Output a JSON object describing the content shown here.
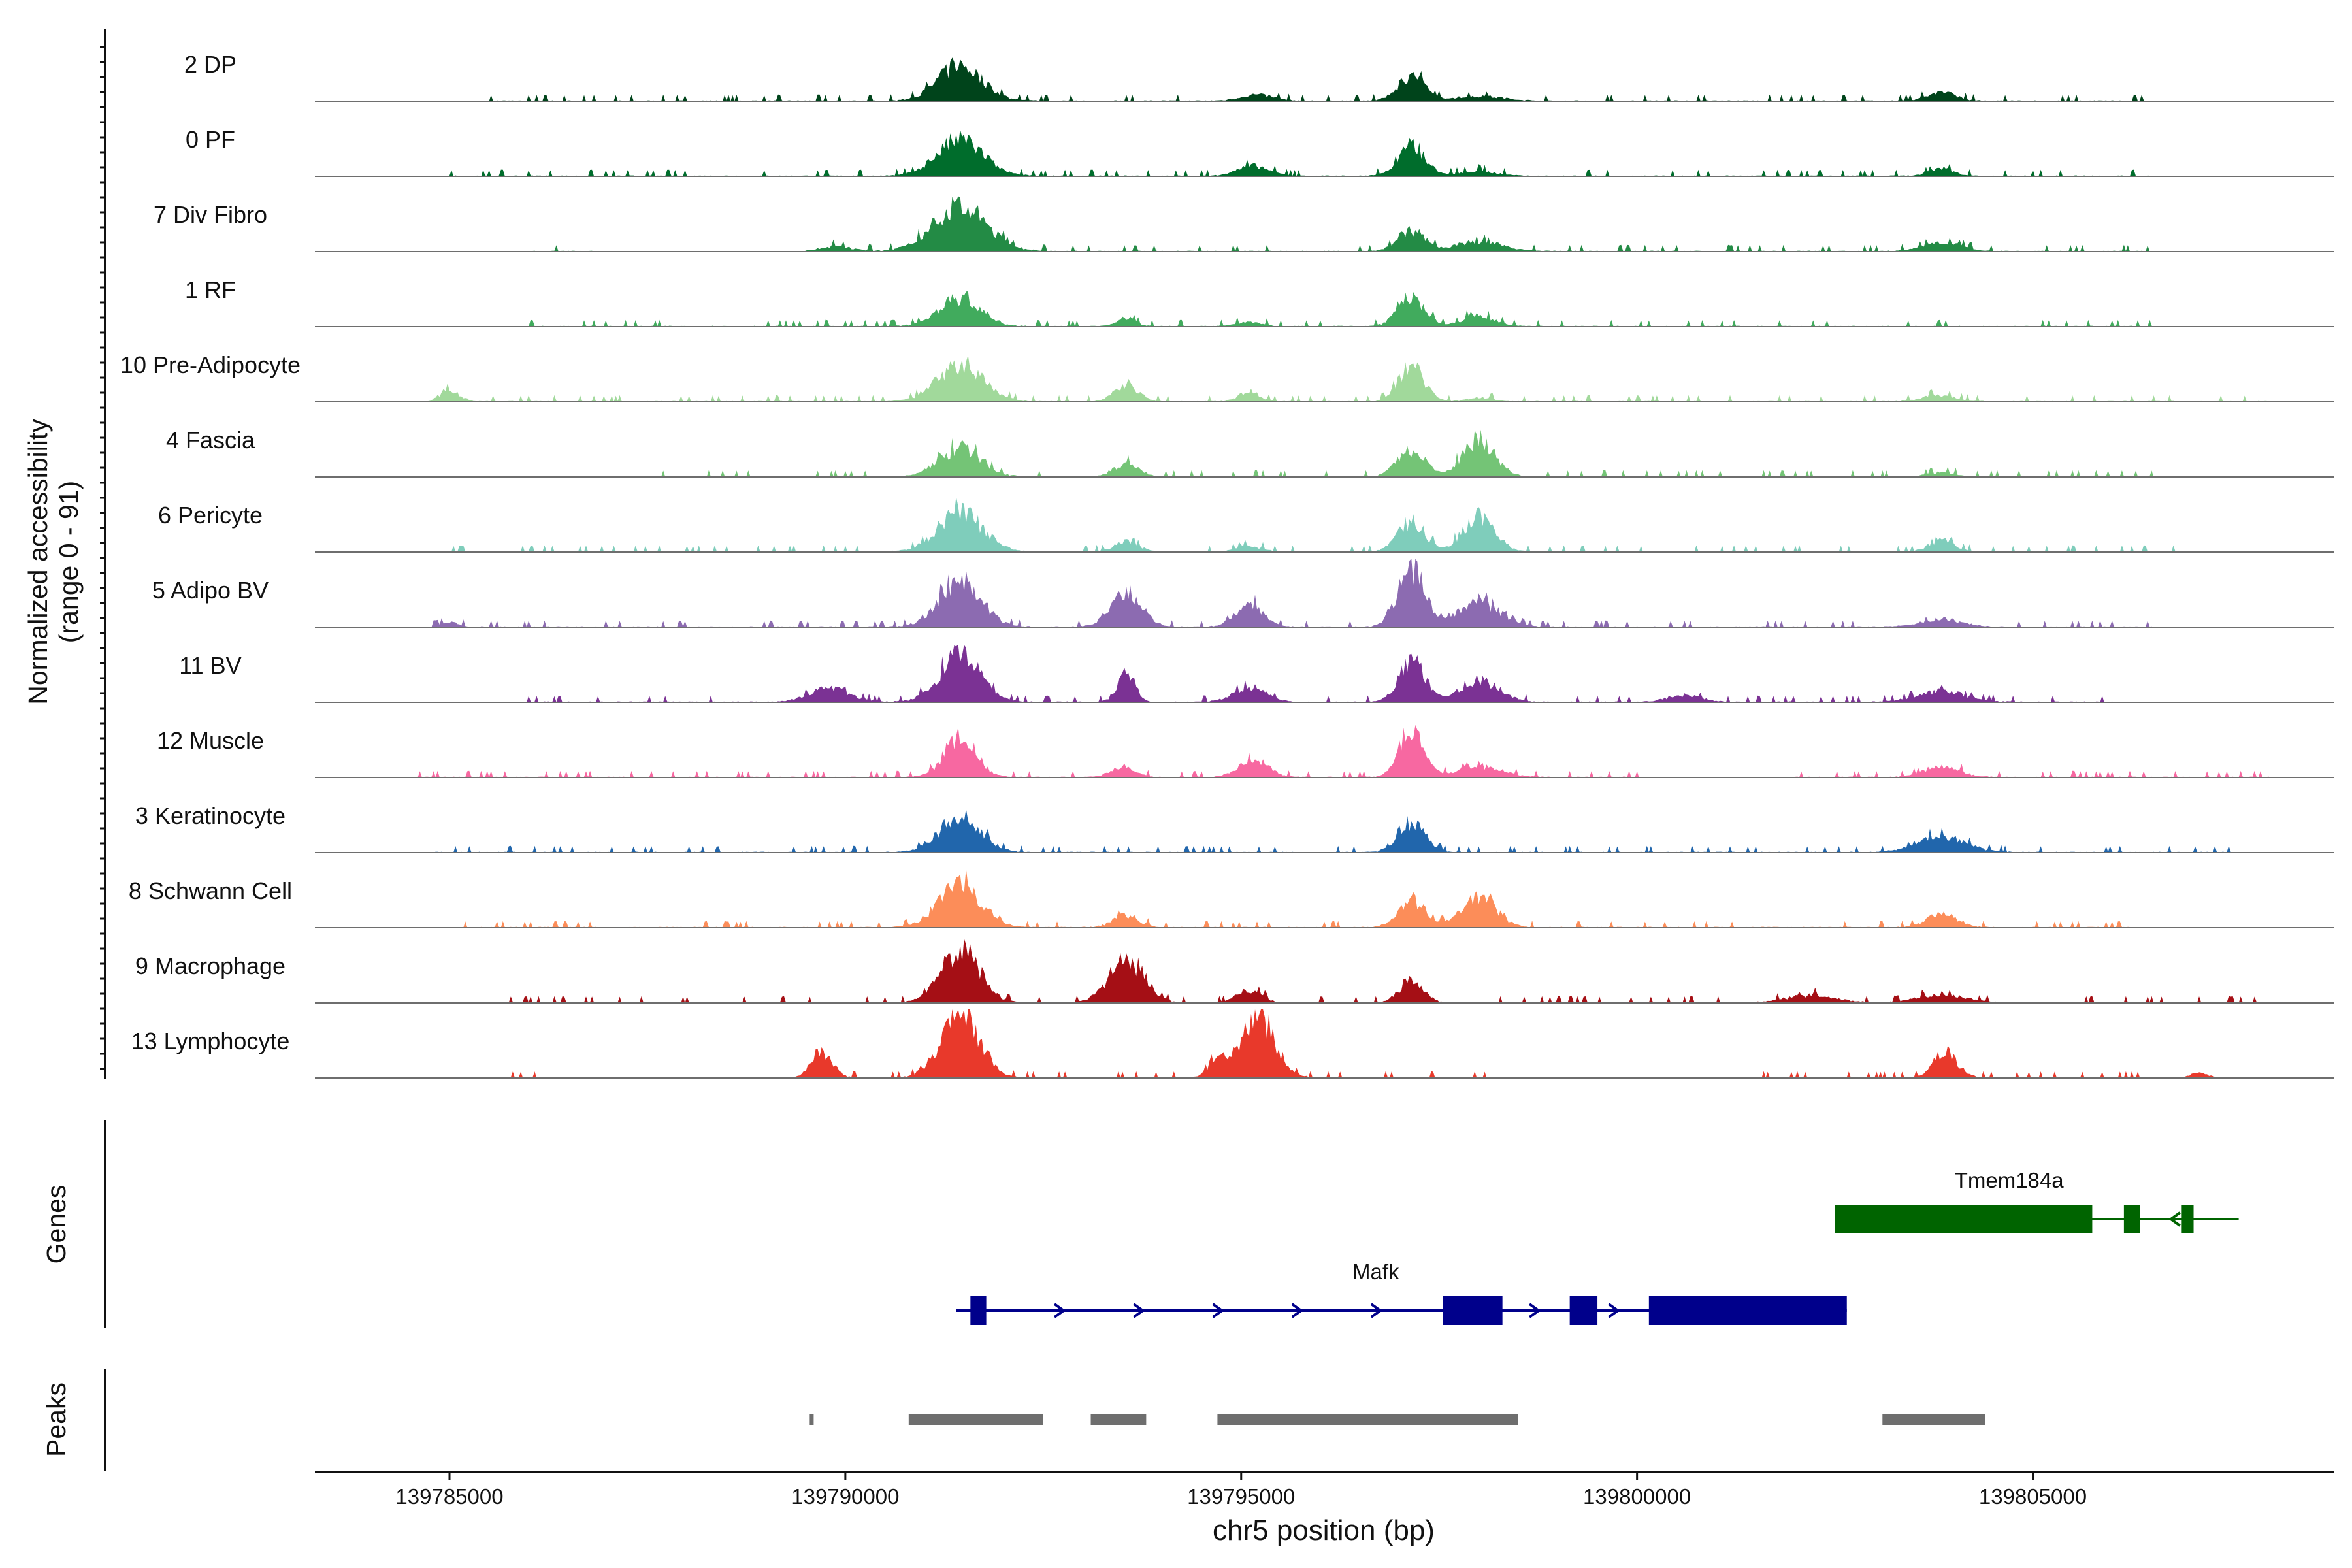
{
  "chart_data": {
    "type": "area",
    "title": "",
    "chromosome": "chr5",
    "xlabel": "chr5 position (bp)",
    "ylabel": "Normalized accessibility",
    "ylabel_range": "(range 0 - 91)",
    "y_range": [
      0,
      91
    ],
    "xlim": [
      139783300,
      139808800
    ],
    "x_ticks": [
      {
        "value": 139785000,
        "label": "139785000"
      },
      {
        "value": 139790000,
        "label": "139790000"
      },
      {
        "value": 139795000,
        "label": "139795000"
      },
      {
        "value": 139800000,
        "label": "139800000"
      },
      {
        "value": 139805000,
        "label": "139805000"
      }
    ],
    "tracks": [
      {
        "name": "2 DP",
        "color": "#00441b",
        "noise": [
          [
            139785500,
            139806500
          ]
        ],
        "peaks": [
          [
            139791450,
            46,
            280
          ],
          [
            139795200,
            8,
            200
          ],
          [
            139797150,
            32,
            170
          ],
          [
            139798000,
            6,
            300
          ],
          [
            139803850,
            12,
            170
          ]
        ]
      },
      {
        "name": "0 PF",
        "color": "#006d2c",
        "noise": [
          [
            139785000,
            139806500
          ]
        ],
        "peaks": [
          [
            139791450,
            48,
            290
          ],
          [
            139795150,
            13,
            200
          ],
          [
            139797150,
            42,
            170
          ],
          [
            139798000,
            6,
            250
          ],
          [
            139803850,
            10,
            150
          ]
        ]
      },
      {
        "name": "7 Div Fibro",
        "color": "#238b45",
        "noise": [
          [
            139786000,
            139786800
          ],
          [
            139789500,
            139806500
          ]
        ],
        "peaks": [
          [
            139791450,
            58,
            340
          ],
          [
            139789900,
            6,
            200
          ],
          [
            139797150,
            28,
            170
          ],
          [
            139798000,
            12,
            300
          ],
          [
            139803850,
            12,
            230
          ]
        ]
      },
      {
        "name": "1 RF",
        "color": "#41ab5d",
        "noise": [
          [
            139786000,
            139806500
          ]
        ],
        "peaks": [
          [
            139791450,
            38,
            260
          ],
          [
            139793550,
            11,
            110
          ],
          [
            139795100,
            6,
            150
          ],
          [
            139797150,
            36,
            170
          ],
          [
            139798000,
            14,
            200
          ]
        ]
      },
      {
        "name": "10 Pre-Adipocyte",
        "color": "#a1d99b",
        "noise": [
          [
            139784800,
            139808000
          ]
        ],
        "peaks": [
          [
            139785000,
            16,
            120
          ],
          [
            139791450,
            46,
            290
          ],
          [
            139793550,
            22,
            150
          ],
          [
            139795100,
            14,
            120
          ],
          [
            139797150,
            46,
            160
          ],
          [
            139798000,
            5,
            150
          ],
          [
            139803800,
            8,
            200
          ]
        ]
      },
      {
        "name": "4 Fascia",
        "color": "#74c476",
        "noise": [
          [
            139787000,
            139806500
          ]
        ],
        "peaks": [
          [
            139791450,
            38,
            260
          ],
          [
            139793550,
            18,
            150
          ],
          [
            139797150,
            36,
            170
          ],
          [
            139798000,
            50,
            200
          ],
          [
            139803850,
            6,
            150
          ]
        ]
      },
      {
        "name": "6 Pericyte",
        "color": "#7fcdbb",
        "noise": [
          [
            139785000,
            139807000
          ]
        ],
        "peaks": [
          [
            139791450,
            52,
            280
          ],
          [
            139793550,
            14,
            150
          ],
          [
            139795100,
            8,
            150
          ],
          [
            139797150,
            40,
            170
          ],
          [
            139798000,
            46,
            200
          ],
          [
            139803850,
            16,
            150
          ]
        ]
      },
      {
        "name": "5 Adipo BV",
        "color": "#8c6bb1",
        "noise": [
          [
            139784800,
            139806500
          ]
        ],
        "peaks": [
          [
            139785000,
            6,
            100
          ],
          [
            139791450,
            62,
            260
          ],
          [
            139793550,
            42,
            200
          ],
          [
            139795100,
            30,
            170
          ],
          [
            139797150,
            76,
            170
          ],
          [
            139798000,
            32,
            260
          ],
          [
            139803850,
            10,
            250
          ]
        ]
      },
      {
        "name": "11 BV",
        "color": "#7b3294",
        "noise": [
          [
            139786000,
            139800000
          ],
          [
            139800000,
            139806000
          ]
        ],
        "peaks": [
          [
            139789800,
            18,
            250
          ],
          [
            139791450,
            60,
            260
          ],
          [
            139793550,
            40,
            110
          ],
          [
            139795100,
            20,
            200
          ],
          [
            139797150,
            58,
            160
          ],
          [
            139798000,
            28,
            250
          ],
          [
            139800600,
            10,
            200
          ],
          [
            139803850,
            14,
            300
          ]
        ]
      },
      {
        "name": "12 Muscle",
        "color": "#f768a1",
        "noise": [
          [
            139784600,
            139800000
          ],
          [
            139802000,
            139808000
          ]
        ],
        "peaks": [
          [
            139791450,
            52,
            200
          ],
          [
            139793500,
            14,
            150
          ],
          [
            139795150,
            24,
            180
          ],
          [
            139797150,
            64,
            150
          ],
          [
            139798000,
            14,
            280
          ],
          [
            139803850,
            14,
            220
          ]
        ]
      },
      {
        "name": "3 Keratinocyte",
        "color": "#2166ac",
        "noise": [
          [
            139784800,
            139807500
          ]
        ],
        "peaks": [
          [
            139791450,
            48,
            260
          ],
          [
            139797150,
            40,
            170
          ],
          [
            139803850,
            20,
            300
          ]
        ]
      },
      {
        "name": "8 Schwann Cell",
        "color": "#fc8d59",
        "noise": [
          [
            139785200,
            139806300
          ]
        ],
        "peaks": [
          [
            139791450,
            56,
            270
          ],
          [
            139793550,
            16,
            160
          ],
          [
            139797150,
            36,
            170
          ],
          [
            139798000,
            38,
            220
          ],
          [
            139803850,
            16,
            200
          ]
        ]
      },
      {
        "name": "9 Macrophage",
        "color": "#a50f15",
        "noise": [
          [
            139785000,
            139808000
          ]
        ],
        "peaks": [
          [
            139791450,
            70,
            240
          ],
          [
            139793550,
            58,
            220
          ],
          [
            139795100,
            16,
            150
          ],
          [
            139797150,
            28,
            150
          ],
          [
            139802200,
            10,
            300
          ],
          [
            139803850,
            10,
            300
          ]
        ]
      },
      {
        "name": "13 Lymphocyte",
        "color": "#e8392b",
        "noise": [
          [
            139785200,
            139786300
          ],
          [
            139789500,
            139798500
          ],
          [
            139801500,
            139806500
          ]
        ],
        "peaks": [
          [
            139789700,
            36,
            130
          ],
          [
            139791450,
            84,
            240
          ],
          [
            139794700,
            24,
            110
          ],
          [
            139795200,
            80,
            220
          ],
          [
            139803900,
            34,
            150
          ],
          [
            139807100,
            6,
            120
          ]
        ]
      }
    ],
    "genes_label": "Genes",
    "genes": [
      {
        "name": "Tmem184a",
        "strand": "-",
        "color": "#006400",
        "start": 139802500,
        "end": 139807600,
        "exons": [
          [
            139802500,
            139805750
          ],
          [
            139806150,
            139806350
          ],
          [
            139806880,
            139807030
          ]
        ]
      },
      {
        "name": "Mafk",
        "strand": "+",
        "color": "#00008b",
        "start": 139791400,
        "end": 139802650,
        "exons": [
          [
            139791580,
            139791780
          ],
          [
            139797550,
            139798300
          ],
          [
            139799150,
            139799500
          ],
          [
            139800150,
            139802650
          ]
        ]
      }
    ],
    "peaks_label": "Peaks",
    "peak_regions": [
      [
        139789550,
        139789600
      ],
      [
        139790800,
        139792500
      ],
      [
        139793100,
        139793800
      ],
      [
        139794700,
        139798500
      ],
      [
        139803100,
        139804400
      ]
    ]
  }
}
